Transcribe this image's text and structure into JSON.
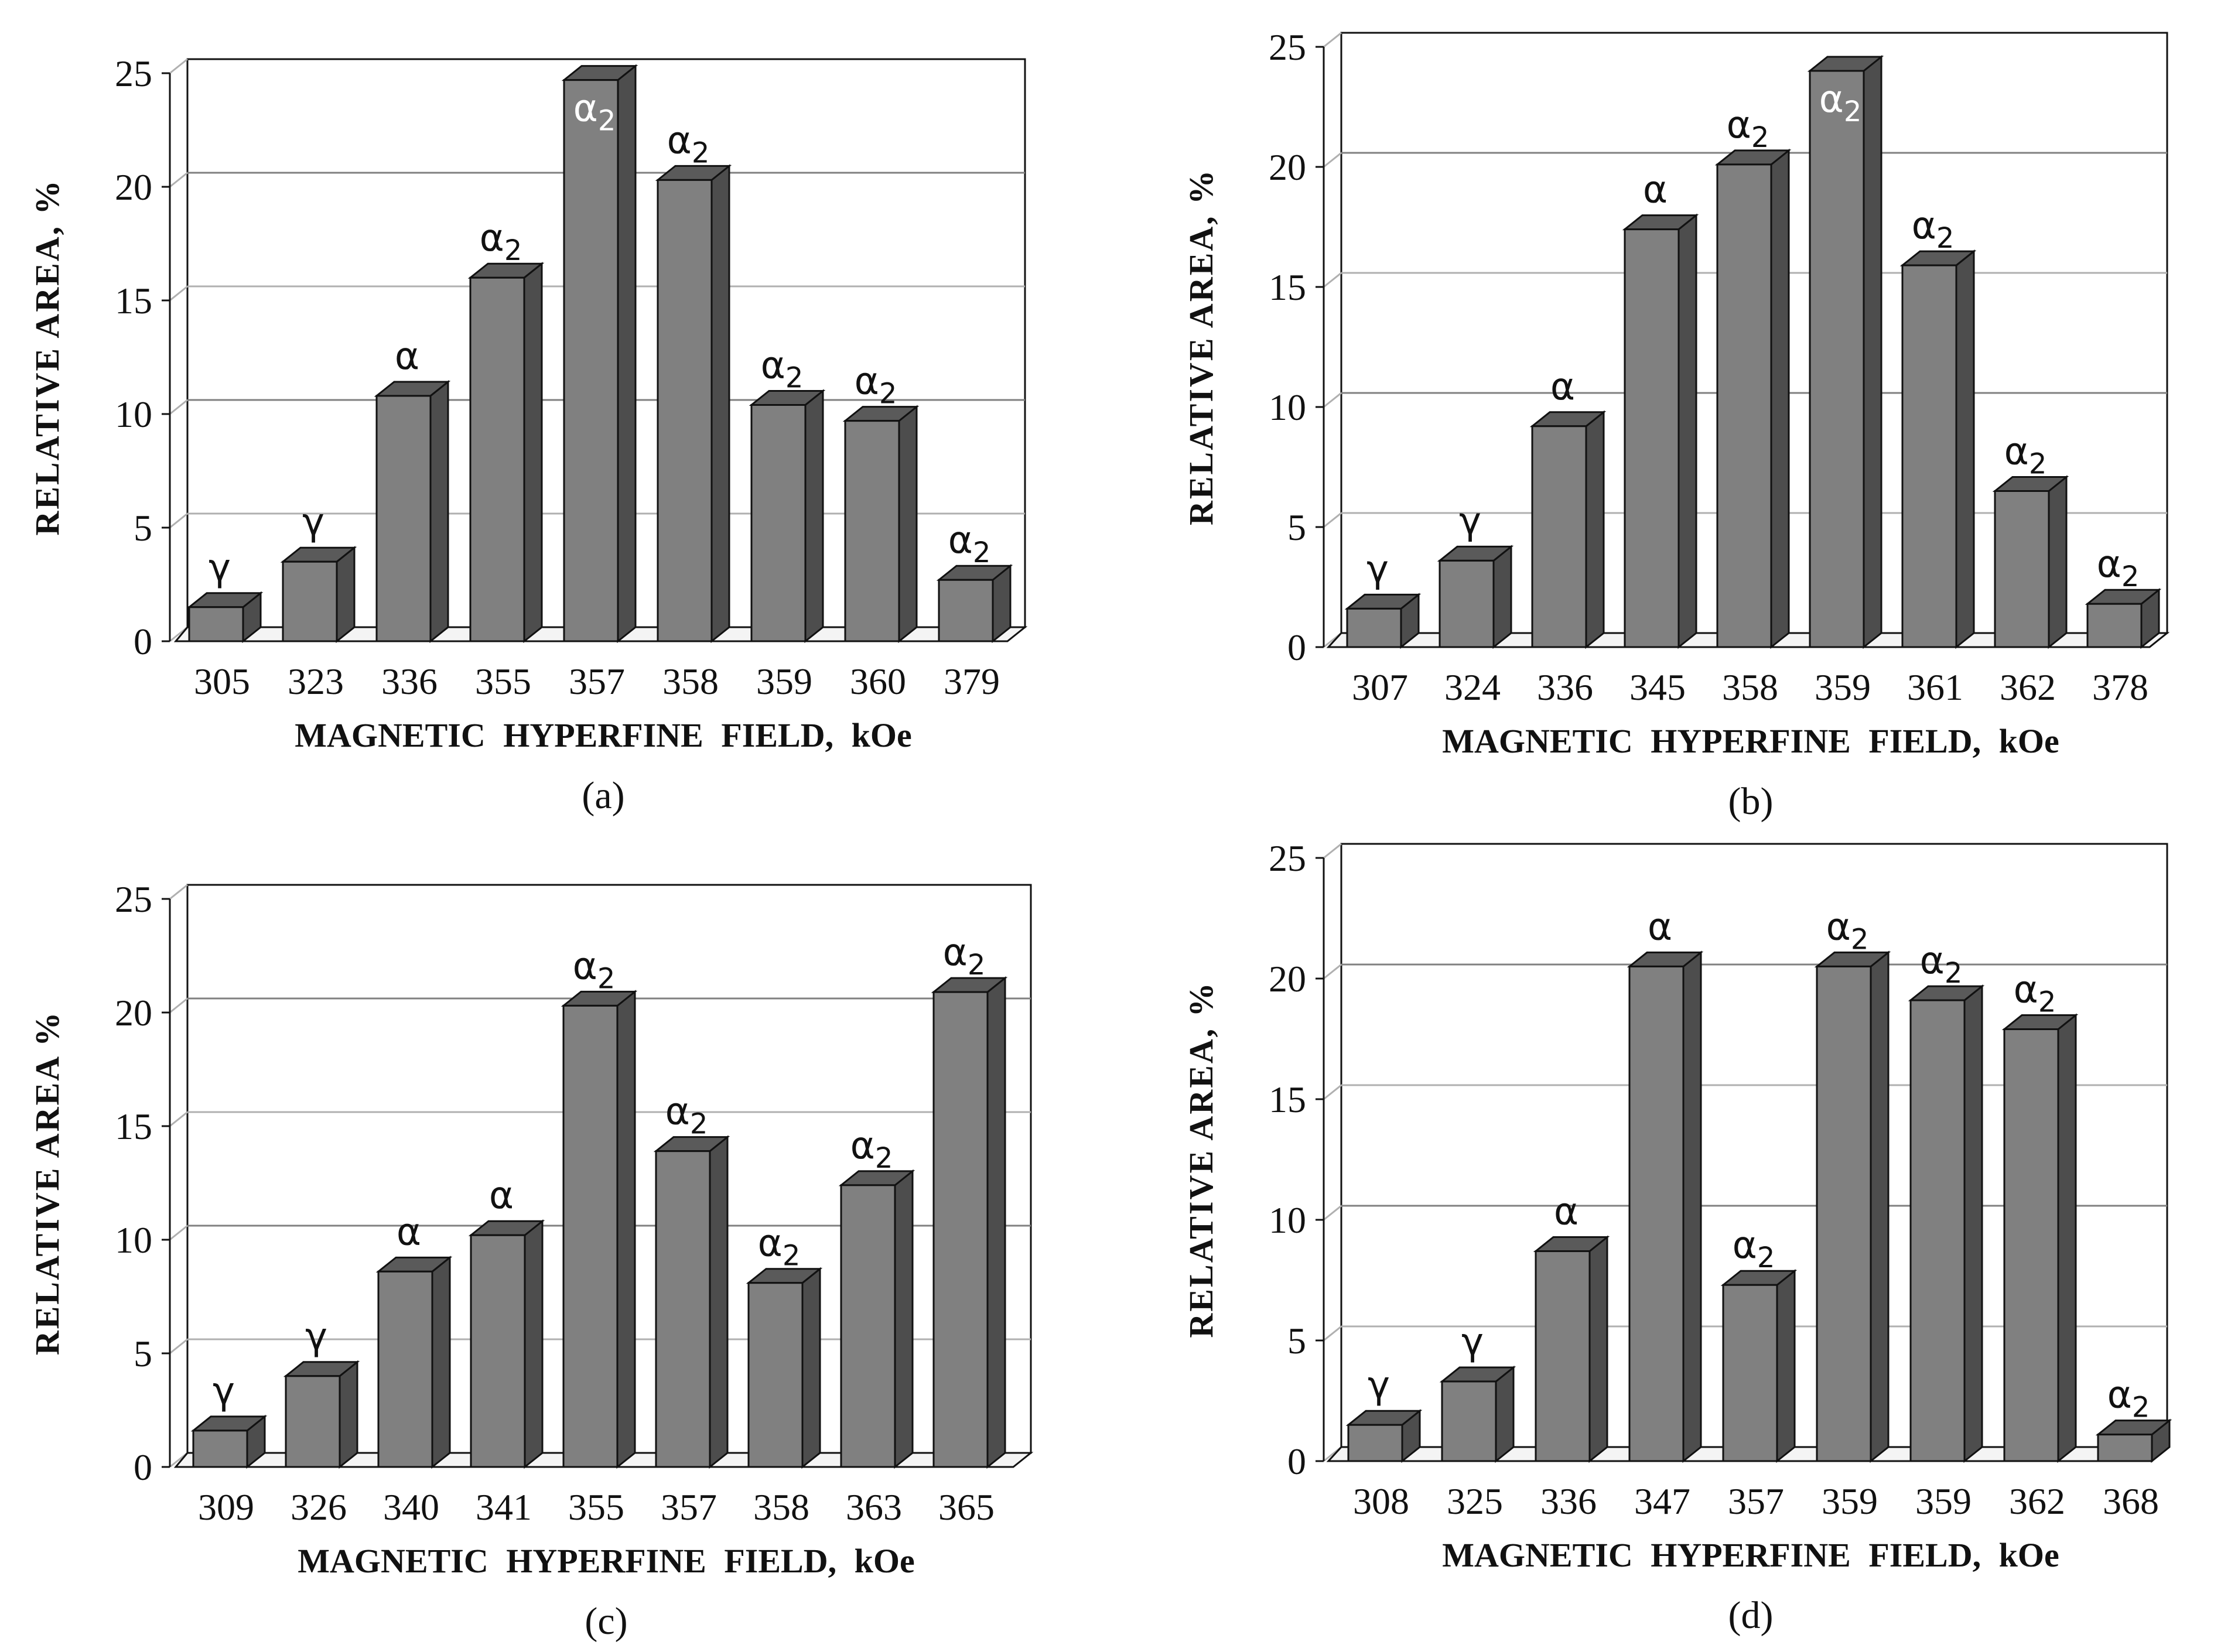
{
  "colors": {
    "bar_front": "#808080",
    "bar_top": "#5a5a5a",
    "bar_side": "#4d4d4d",
    "outline": "#111111",
    "grid": "#b0b0b0",
    "grid_bold": "#808080"
  },
  "chart_data": [
    {
      "type": "bar",
      "panel_label": "(a)",
      "xlabel": "MAGNETIC  HYPERFINE  FIELD,  kOe",
      "ylabel": "RELATIVE  AREA,  %",
      "ylim": [
        0,
        25
      ],
      "yticks": [
        "0",
        "5",
        "10",
        "15",
        "20",
        "25"
      ],
      "categories": [
        "305",
        "323",
        "336",
        "355",
        "357",
        "358",
        "359",
        "360",
        "379"
      ],
      "values": [
        1.5,
        3.5,
        10.8,
        16.0,
        24.7,
        20.3,
        10.4,
        9.7,
        2.7
      ],
      "phases": [
        "γ",
        "γ",
        "α",
        "α2",
        "α2",
        "α2",
        "α2",
        "α2",
        "α2"
      ]
    },
    {
      "type": "bar",
      "panel_label": "(b)",
      "xlabel": "MAGNETIC  HYPERFINE  FIELD,  kOe",
      "ylabel": "RELATIVE  AREA,  %",
      "ylim": [
        0,
        25
      ],
      "yticks": [
        "0",
        "5",
        "10",
        "15",
        "20",
        "25"
      ],
      "categories": [
        "307",
        "324",
        "336",
        "345",
        "358",
        "359",
        "361",
        "362",
        "378"
      ],
      "values": [
        1.6,
        3.6,
        9.2,
        17.4,
        20.1,
        24.0,
        15.9,
        6.5,
        1.8
      ],
      "phases": [
        "γ",
        "γ",
        "α",
        "α",
        "α2",
        "α2",
        "α2",
        "α2",
        "α2"
      ]
    },
    {
      "type": "bar",
      "panel_label": "(c)",
      "xlabel": "MAGNETIC  HYPERFINE  FIELD,  kOe",
      "ylabel": "RELATIVE  AREA  %",
      "ylim": [
        0,
        25
      ],
      "yticks": [
        "0",
        "5",
        "10",
        "15",
        "20",
        "25"
      ],
      "categories": [
        "309",
        "326",
        "340",
        "341",
        "355",
        "357",
        "358",
        "363",
        "365"
      ],
      "values": [
        1.6,
        4.0,
        8.6,
        10.2,
        20.3,
        13.9,
        8.1,
        12.4,
        20.9
      ],
      "phases": [
        "γ",
        "γ",
        "α",
        "α",
        "α2",
        "α2",
        "α2",
        "α2",
        "α2"
      ]
    },
    {
      "type": "bar",
      "panel_label": "(d)",
      "xlabel": "MAGNETIC  HYPERFINE  FIELD,  kOe",
      "ylabel": "RELATIVE  AREA,  %",
      "ylim": [
        0,
        25
      ],
      "yticks": [
        "0",
        "5",
        "10",
        "15",
        "20",
        "25"
      ],
      "categories": [
        "308",
        "325",
        "336",
        "347",
        "357",
        "359",
        "359",
        "362",
        "368"
      ],
      "values": [
        1.5,
        3.3,
        8.7,
        20.5,
        7.3,
        20.5,
        19.1,
        17.9,
        1.1
      ],
      "phases": [
        "γ",
        "γ",
        "α",
        "α",
        "α2",
        "α2",
        "α2",
        "α2",
        "α2"
      ]
    }
  ]
}
